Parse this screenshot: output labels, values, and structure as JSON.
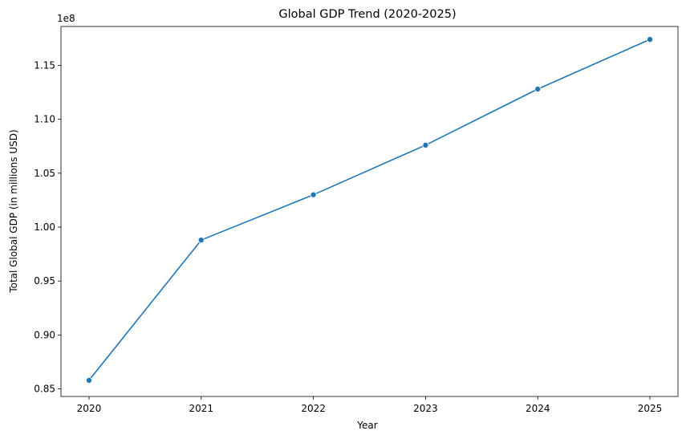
{
  "chart_data": {
    "type": "line",
    "title": "Global GDP Trend (2020-2025)",
    "xlabel": "Year",
    "ylabel": "Total Global GDP (in millions USD)",
    "y_offset_label": "1e8",
    "x": [
      2020,
      2021,
      2022,
      2023,
      2024,
      2025
    ],
    "x_tick_labels": [
      "2020",
      "2021",
      "2022",
      "2023",
      "2024",
      "2025"
    ],
    "y_ticks": [
      0.85,
      0.9,
      0.95,
      1.0,
      1.05,
      1.1,
      1.15
    ],
    "y_tick_labels": [
      "0.85",
      "0.90",
      "0.95",
      "1.00",
      "1.05",
      "1.10",
      "1.15"
    ],
    "ylim": [
      0.843,
      1.186
    ],
    "xlim": [
      2019.75,
      2025.25
    ],
    "series": [
      {
        "values": [
          0.858,
          0.988,
          1.03,
          1.076,
          1.128,
          1.174
        ],
        "color": "#1f77b4",
        "marker": "circle"
      }
    ],
    "grid": false,
    "legend": "none"
  }
}
